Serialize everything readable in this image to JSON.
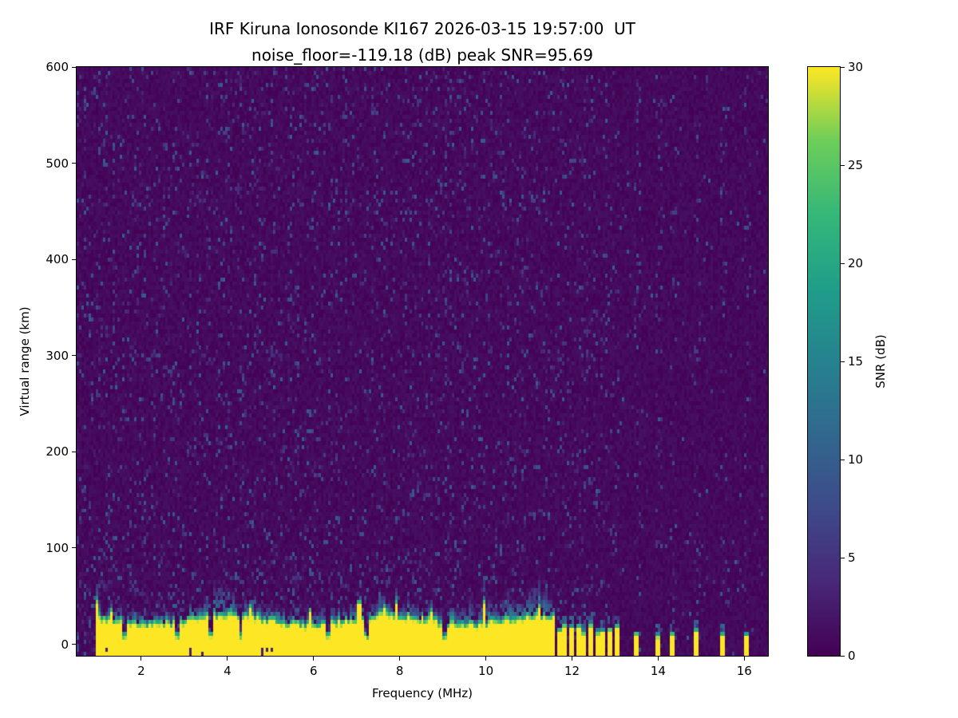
{
  "figure": {
    "title_line1": "IRF Kiruna Ionosonde KI167 2026-03-15 19:57:00  UT",
    "title_line2": "noise_floor=-119.18 (dB) peak SNR=95.69"
  },
  "chart_data": {
    "type": "heatmap",
    "title": "IRF Kiruna Ionosonde KI167 2026-03-15 19:57:00  UT",
    "subtitle": "noise_floor=-119.18 (dB) peak SNR=95.69",
    "station": "KI167",
    "timestamp_ut": "2026-03-15 19:57:00",
    "noise_floor_db": -119.18,
    "peak_snr_db": 95.69,
    "xlabel": "Frequency (MHz)",
    "ylabel": "Virtual range (km)",
    "xlim": [
      0.5,
      16.55
    ],
    "ylim": [
      -12,
      600
    ],
    "xticks": [
      2,
      4,
      6,
      8,
      10,
      12,
      14,
      16
    ],
    "yticks": [
      0,
      100,
      200,
      300,
      400,
      500,
      600
    ],
    "grid": false,
    "legend": "none",
    "colorbar": {
      "label": "SNR (dB)",
      "min": 0,
      "max": 30,
      "ticks": [
        0,
        5,
        10,
        15,
        20,
        25,
        30
      ],
      "colormap": "viridis",
      "position": "right"
    },
    "features": {
      "background": "sparse speckle noise of 0-10 dB over a dark ~0 dB (dark purple) background across the whole frame",
      "ground_band": {
        "f_start": 0.93,
        "f_end": 11.62,
        "description": "saturated (>=30 dB, yellow) ground/direct-pulse echo band extending from the bottom edge (~-10 km) up to ~22-45 km virtual range, continuous in frequency, with a ragged teal/green upper transition edge",
        "top_km_typical": [
          22,
          45
        ]
      },
      "band_notches_mhz": [
        1.6,
        2.85,
        3.62,
        4.3,
        6.33,
        7.2,
        9.05
      ],
      "band_fuzz_peaks_mhz": [
        3.85,
        10.2,
        11.25
      ],
      "stripe_freqs_mhz": [
        11.7,
        11.85,
        12.0,
        12.14,
        12.29,
        12.44,
        12.59,
        12.74,
        12.89,
        13.04,
        13.5,
        14.0,
        14.33,
        14.9,
        15.5,
        16.05
      ],
      "stripe_top_km_typical": [
        12,
        25
      ],
      "stripes_description": "above ~11.6 MHz sounding is at discrete stepped frequencies: narrow vertical saturated yellow stripes near the bottom edge plus faint full-height speckle-noise columns at the same frequencies, dark in between"
    }
  }
}
